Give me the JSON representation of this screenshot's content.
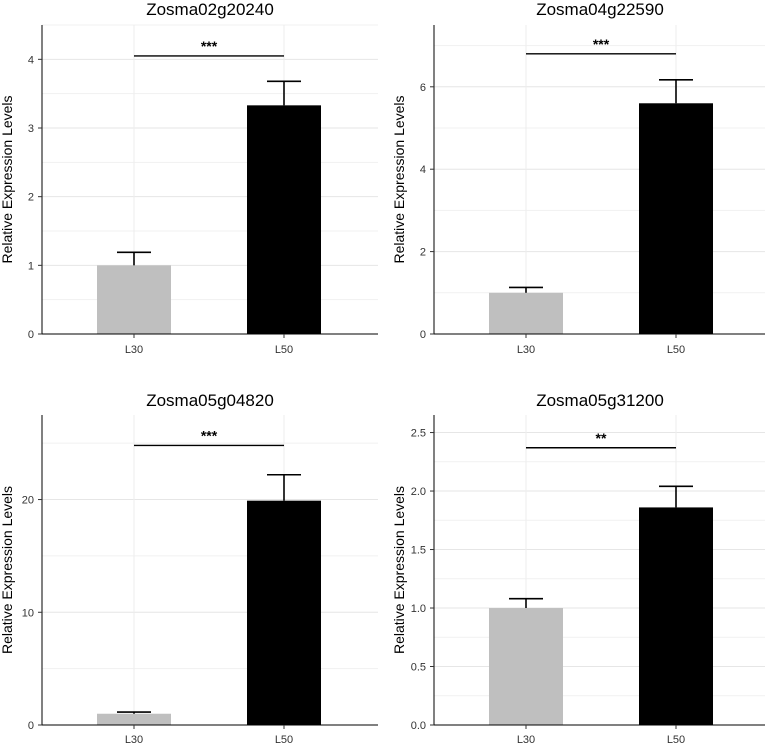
{
  "chart_data": [
    {
      "type": "bar",
      "title": "Zosma02g20240",
      "ylabel": "Relative Expression Levels",
      "categories": [
        "L30",
        "L50"
      ],
      "values": [
        1.0,
        3.33
      ],
      "errors": [
        0.19,
        0.35
      ],
      "ylim": [
        0,
        4.5
      ],
      "yticks": [
        0,
        1,
        2,
        3,
        4
      ],
      "ytick_labels": [
        "0",
        "1",
        "2",
        "3",
        "4"
      ],
      "significance": "***",
      "sig_y": 4.05,
      "colors": [
        "#bfbfbf",
        "#000000"
      ]
    },
    {
      "type": "bar",
      "title": "Zosma04g22590",
      "ylabel": "Relative Expression Levels",
      "categories": [
        "L30",
        "L50"
      ],
      "values": [
        1.0,
        5.6
      ],
      "errors": [
        0.13,
        0.57
      ],
      "ylim": [
        0,
        7.5
      ],
      "yticks": [
        0,
        2,
        4,
        6
      ],
      "ytick_labels": [
        "0",
        "2",
        "4",
        "6"
      ],
      "significance": "***",
      "sig_y": 6.8,
      "colors": [
        "#bfbfbf",
        "#000000"
      ]
    },
    {
      "type": "bar",
      "title": "Zosma05g04820",
      "ylabel": "Relative Expression Levels",
      "categories": [
        "L30",
        "L50"
      ],
      "values": [
        1.0,
        19.9
      ],
      "errors": [
        0.15,
        2.3
      ],
      "ylim": [
        0,
        27.5
      ],
      "yticks": [
        0,
        10,
        20
      ],
      "ytick_labels": [
        "0",
        "10",
        "20"
      ],
      "significance": "***",
      "sig_y": 24.8,
      "colors": [
        "#bfbfbf",
        "#000000"
      ]
    },
    {
      "type": "bar",
      "title": "Zosma05g31200",
      "ylabel": "Relative Expression Levels",
      "categories": [
        "L30",
        "L50"
      ],
      "values": [
        1.0,
        1.86
      ],
      "errors": [
        0.08,
        0.18
      ],
      "ylim": [
        0,
        2.65
      ],
      "yticks": [
        0,
        0.5,
        1.0,
        1.5,
        2.0,
        2.5
      ],
      "ytick_labels": [
        "0.0",
        "0.5",
        "1.0",
        "1.5",
        "2.0",
        "2.5"
      ],
      "significance": "**",
      "sig_y": 2.37,
      "colors": [
        "#bfbfbf",
        "#000000"
      ]
    }
  ]
}
